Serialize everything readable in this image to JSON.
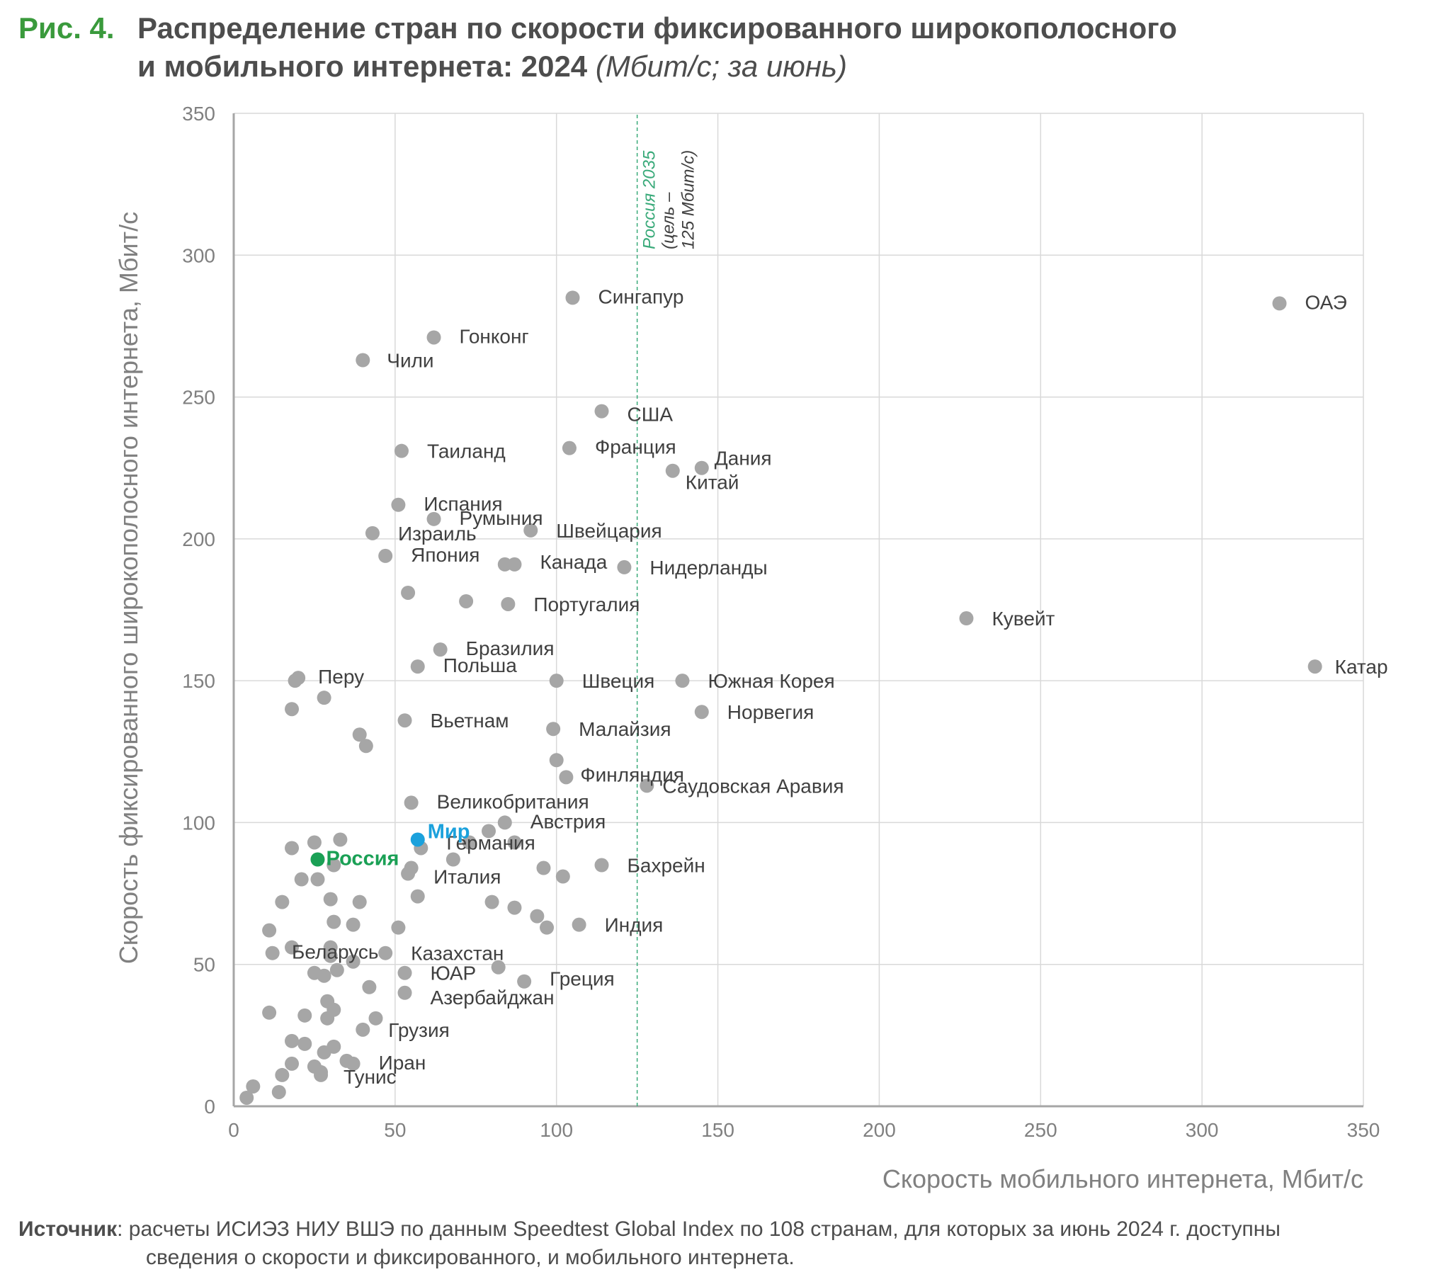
{
  "figure": {
    "number": "Рис. 4.",
    "title_line1": "Распределение стран по скорости фиксированного широкополосного",
    "title_line2": "и мобильного интернета: 2024",
    "title_unit": "(Мбит/с; за июнь)"
  },
  "source": {
    "label": "Источник",
    "text_line1": ": расчеты ИСИЭЗ НИУ ВШЭ по данным Speedtest Global Index по 108 странам, для которых за июнь 2024 г. доступны",
    "text_line2": "сведения о скорости и фиксированного, и мобильного интернета."
  },
  "chart_data": {
    "type": "scatter",
    "xlabel": "Скорость мобильного интернета, Мбит/с",
    "ylabel": "Скорость фиксированного широкополосного интернета, Мбит/с",
    "xlim": [
      0,
      350
    ],
    "ylim": [
      0,
      350
    ],
    "xticks": [
      0,
      50,
      100,
      150,
      200,
      250,
      300,
      350
    ],
    "yticks": [
      0,
      50,
      100,
      150,
      200,
      250,
      300,
      350
    ],
    "grid": true,
    "colors": {
      "point": "#a6a6a6",
      "russia": "#1aa055",
      "world": "#1ba1dc",
      "target_line": "#3aaa7a",
      "grid": "#d9d9d9",
      "axis": "#a6a6a6",
      "tick_text": "#808080",
      "label_text": "#404040"
    },
    "reference_line": {
      "x": 125,
      "label_line1": "Россия 2035",
      "label_line2": "(цель –",
      "label_line3": "125 Мбит/с)"
    },
    "highlighted": [
      {
        "name": "Россия",
        "x": 26,
        "y": 87,
        "color": "#1aa055"
      },
      {
        "name": "Мир",
        "x": 57,
        "y": 94,
        "color": "#1ba1dc"
      }
    ],
    "labeled_points": [
      {
        "name": "ОАЭ",
        "x": 324,
        "y": 283
      },
      {
        "name": "Сингапур",
        "x": 105,
        "y": 285
      },
      {
        "name": "Гонконг",
        "x": 62,
        "y": 271
      },
      {
        "name": "Чили",
        "x": 40,
        "y": 263
      },
      {
        "name": "США",
        "x": 114,
        "y": 245
      },
      {
        "name": "Таиланд",
        "x": 52,
        "y": 231
      },
      {
        "name": "Франция",
        "x": 104,
        "y": 232
      },
      {
        "name": "Дания",
        "x": 145,
        "y": 225
      },
      {
        "name": "Китай",
        "x": 136,
        "y": 224
      },
      {
        "name": "Испания",
        "x": 51,
        "y": 212
      },
      {
        "name": "Румыния",
        "x": 62,
        "y": 207
      },
      {
        "name": "Швейцария",
        "x": 92,
        "y": 203
      },
      {
        "name": "Израиль",
        "x": 43,
        "y": 202
      },
      {
        "name": "Япония",
        "x": 47,
        "y": 194
      },
      {
        "name": "Канада",
        "x": 87,
        "y": 191
      },
      {
        "name": "Нидерланды",
        "x": 121,
        "y": 190
      },
      {
        "name": "Португалия",
        "x": 85,
        "y": 177
      },
      {
        "name": "Кувейт",
        "x": 227,
        "y": 172
      },
      {
        "name": "Бразилия",
        "x": 64,
        "y": 161
      },
      {
        "name": "Катар",
        "x": 335,
        "y": 155
      },
      {
        "name": "Польша",
        "x": 57,
        "y": 155
      },
      {
        "name": "Перу",
        "x": 20,
        "y": 151
      },
      {
        "name": "Швеция",
        "x": 100,
        "y": 150
      },
      {
        "name": "Южная Корея",
        "x": 139,
        "y": 150
      },
      {
        "name": "Норвегия",
        "x": 145,
        "y": 139
      },
      {
        "name": "Вьетнам",
        "x": 53,
        "y": 136
      },
      {
        "name": "Малайзия",
        "x": 99,
        "y": 133
      },
      {
        "name": "Финляндия",
        "x": 103,
        "y": 116
      },
      {
        "name": "Саудовская Аравия",
        "x": 128,
        "y": 113
      },
      {
        "name": "Великобритания",
        "x": 55,
        "y": 107
      },
      {
        "name": "Австрия",
        "x": 84,
        "y": 100
      },
      {
        "name": "Германия",
        "x": 58,
        "y": 91
      },
      {
        "name": "Бахрейн",
        "x": 114,
        "y": 85
      },
      {
        "name": "Италия",
        "x": 54,
        "y": 82
      },
      {
        "name": "Индия",
        "x": 107,
        "y": 64
      },
      {
        "name": "Беларусь",
        "x": 18,
        "y": 56
      },
      {
        "name": "Казахстан",
        "x": 47,
        "y": 54
      },
      {
        "name": "Греция",
        "x": 90,
        "y": 44
      },
      {
        "name": "ЮАР",
        "x": 53,
        "y": 47
      },
      {
        "name": "Азербайджан",
        "x": 53,
        "y": 40
      },
      {
        "name": "Грузия",
        "x": 40,
        "y": 27
      },
      {
        "name": "Иран",
        "x": 37,
        "y": 15
      },
      {
        "name": "Тунис",
        "x": 27,
        "y": 11
      }
    ],
    "other_points": [
      [
        54,
        181
      ],
      [
        72,
        178
      ],
      [
        84,
        191
      ],
      [
        19,
        150
      ],
      [
        18,
        140
      ],
      [
        28,
        144
      ],
      [
        39,
        131
      ],
      [
        41,
        127
      ],
      [
        100,
        122
      ],
      [
        33,
        94
      ],
      [
        25,
        93
      ],
      [
        18,
        91
      ],
      [
        31,
        85
      ],
      [
        55,
        84
      ],
      [
        26,
        80
      ],
      [
        21,
        80
      ],
      [
        68,
        87
      ],
      [
        73,
        93
      ],
      [
        79,
        97
      ],
      [
        87,
        93
      ],
      [
        96,
        84
      ],
      [
        102,
        81
      ],
      [
        80,
        72
      ],
      [
        87,
        70
      ],
      [
        57,
        74
      ],
      [
        30,
        73
      ],
      [
        39,
        72
      ],
      [
        15,
        72
      ],
      [
        11,
        62
      ],
      [
        12,
        54
      ],
      [
        31,
        65
      ],
      [
        37,
        64
      ],
      [
        51,
        63
      ],
      [
        94,
        67
      ],
      [
        97,
        63
      ],
      [
        30,
        56
      ],
      [
        30,
        53
      ],
      [
        37,
        51
      ],
      [
        82,
        49
      ],
      [
        25,
        47
      ],
      [
        28,
        46
      ],
      [
        32,
        48
      ],
      [
        42,
        42
      ],
      [
        29,
        37
      ],
      [
        31,
        34
      ],
      [
        29,
        31
      ],
      [
        22,
        32
      ],
      [
        11,
        33
      ],
      [
        44,
        31
      ],
      [
        18,
        23
      ],
      [
        22,
        22
      ],
      [
        31,
        21
      ],
      [
        28,
        19
      ],
      [
        35,
        16
      ],
      [
        18,
        15
      ],
      [
        25,
        14
      ],
      [
        15,
        11
      ],
      [
        27,
        12
      ],
      [
        6,
        7
      ],
      [
        14,
        5
      ],
      [
        4,
        3
      ]
    ]
  }
}
